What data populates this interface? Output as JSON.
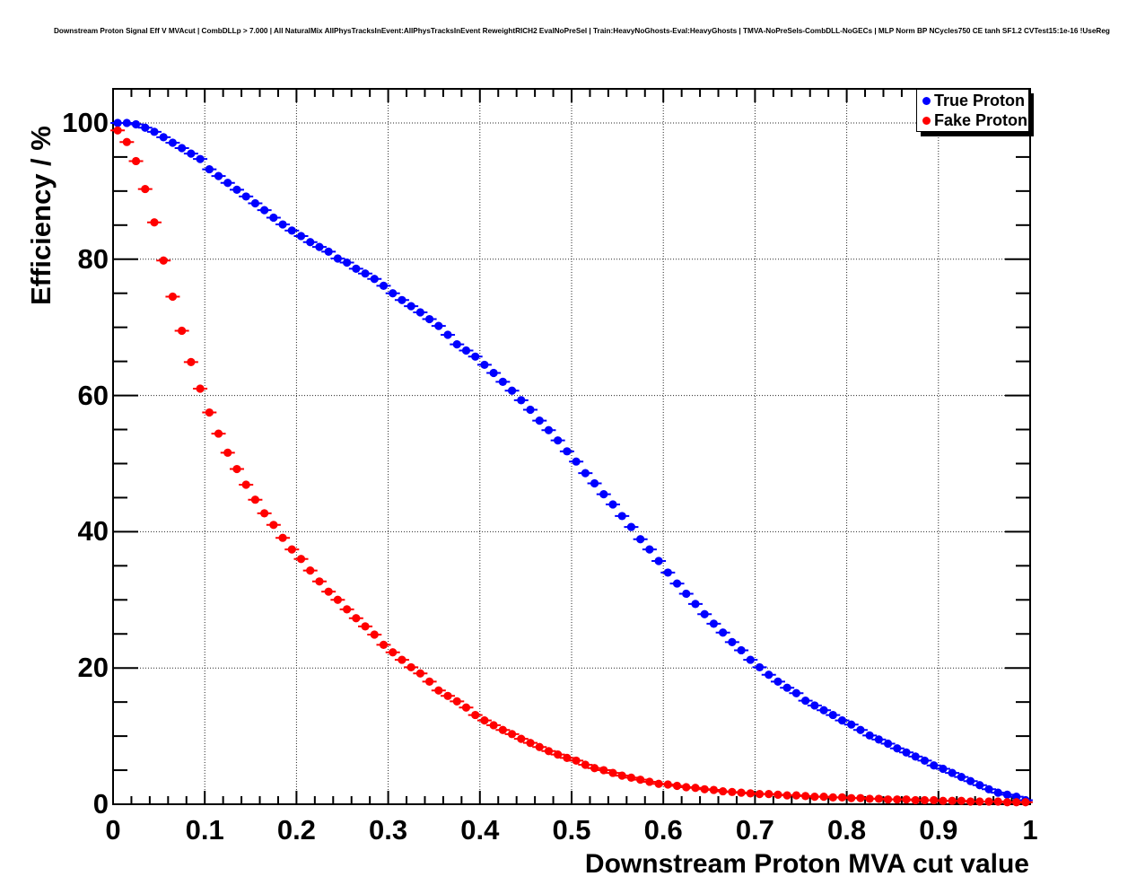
{
  "header": {
    "title": "Downstream Proton Signal Eff V MVAcut | CombDLLp > 7.000 | All NaturalMix AllPhysTracksInEvent:AllPhysTracksInEvent ReweightRICH2 EvalNoPreSel | Train:HeavyNoGhosts-Eval:HeavyGhosts | TMVA-NoPreSels-CombDLL-NoGECs | MLP Norm BP NCycles750 CE tanh SF1.2 CVTest15:1e-16 !UseReg"
  },
  "chart_data": {
    "type": "scatter",
    "title": "Downstream Proton Signal Eff V MVAcut | CombDLLp > 7.000 | All NaturalMix AllPhysTracksInEvent:AllPhysTracksInEvent ReweightRICH2 EvalNoPreSel | Train:HeavyNoGhosts-Eval:HeavyGhosts | TMVA-NoPreSels-CombDLL-NoGECs | MLP Norm BP NCycles750 CE tanh SF1.2 CVTest15:1e-16 !UseReg",
    "xlabel": "Downstream Proton MVA cut value",
    "ylabel": "Efficiency / %",
    "xlim": [
      0,
      1
    ],
    "ylim": [
      0,
      105
    ],
    "grid": true,
    "grid_style": "dotted",
    "legend_position": "top-right",
    "x_tick_values": [
      0,
      0.1,
      0.2,
      0.3,
      0.4,
      0.5,
      0.6,
      0.7,
      0.8,
      0.9,
      1
    ],
    "x_tick_labels": [
      "0",
      "0.1",
      "0.2",
      "0.3",
      "0.4",
      "0.5",
      "0.6",
      "0.7",
      "0.8",
      "0.9",
      "1"
    ],
    "y_tick_values": [
      0,
      20,
      40,
      60,
      80,
      100
    ],
    "y_tick_labels": [
      "0",
      "20",
      "40",
      "60",
      "80",
      "100"
    ],
    "x": [
      0.005,
      0.015,
      0.025,
      0.035,
      0.045,
      0.055,
      0.065,
      0.075,
      0.085,
      0.095,
      0.105,
      0.115,
      0.125,
      0.135,
      0.145,
      0.155,
      0.165,
      0.175,
      0.185,
      0.195,
      0.205,
      0.215,
      0.225,
      0.235,
      0.245,
      0.255,
      0.265,
      0.275,
      0.285,
      0.295,
      0.305,
      0.315,
      0.325,
      0.335,
      0.345,
      0.355,
      0.365,
      0.375,
      0.385,
      0.395,
      0.405,
      0.415,
      0.425,
      0.435,
      0.445,
      0.455,
      0.465,
      0.475,
      0.485,
      0.495,
      0.505,
      0.515,
      0.525,
      0.535,
      0.545,
      0.555,
      0.565,
      0.575,
      0.585,
      0.595,
      0.605,
      0.615,
      0.625,
      0.635,
      0.645,
      0.655,
      0.665,
      0.675,
      0.685,
      0.695,
      0.705,
      0.715,
      0.725,
      0.735,
      0.745,
      0.755,
      0.765,
      0.775,
      0.785,
      0.795,
      0.805,
      0.815,
      0.825,
      0.835,
      0.845,
      0.855,
      0.865,
      0.875,
      0.885,
      0.895,
      0.905,
      0.915,
      0.925,
      0.935,
      0.945,
      0.955,
      0.965,
      0.975,
      0.985,
      0.995
    ],
    "series": [
      {
        "name": "True Proton",
        "color": "#0000ff",
        "marker": "circle",
        "values": [
          100,
          100,
          99.8,
          99.3,
          98.7,
          97.9,
          97.1,
          96.3,
          95.5,
          94.7,
          93.2,
          92.2,
          91.2,
          90.2,
          89.2,
          88.2,
          87.2,
          86.1,
          85.1,
          84.2,
          83.4,
          82.5,
          81.8,
          81.1,
          80.1,
          79.5,
          78.6,
          77.9,
          77.1,
          76.1,
          75.0,
          74.0,
          73.1,
          72.2,
          71.2,
          70.2,
          68.9,
          67.5,
          66.6,
          65.7,
          64.5,
          63.3,
          62.0,
          60.7,
          59.3,
          57.9,
          56.3,
          54.9,
          53.4,
          51.8,
          50.3,
          48.6,
          47.1,
          45.5,
          44.0,
          42.3,
          40.7,
          38.9,
          37.4,
          35.7,
          34.0,
          32.4,
          30.9,
          29.4,
          27.9,
          26.5,
          25.2,
          23.8,
          22.6,
          21.2,
          20.1,
          19.0,
          18.0,
          17.1,
          16.3,
          15.2,
          14.5,
          13.8,
          13.1,
          12.3,
          11.7,
          10.9,
          10.1,
          9.5,
          8.9,
          8.2,
          7.6,
          7.0,
          6.4,
          5.7,
          5.2,
          4.6,
          4.0,
          3.4,
          2.8,
          2.2,
          1.7,
          1.4,
          1.1,
          0.6
        ]
      },
      {
        "name": "Fake Proton",
        "color": "#ff0000",
        "marker": "circle",
        "values": [
          98.9,
          97.2,
          94.4,
          90.3,
          85.4,
          79.8,
          74.5,
          69.5,
          64.9,
          61.0,
          57.5,
          54.4,
          51.6,
          49.2,
          46.9,
          44.7,
          42.7,
          41.0,
          39.1,
          37.4,
          36.0,
          34.3,
          32.7,
          31.2,
          30.0,
          28.6,
          27.3,
          26.1,
          24.9,
          23.4,
          22.3,
          21.2,
          20.1,
          19.2,
          18.0,
          16.7,
          15.9,
          15.1,
          14.2,
          13.1,
          12.3,
          11.6,
          10.9,
          10.3,
          9.6,
          9.0,
          8.4,
          7.8,
          7.3,
          6.8,
          6.4,
          5.8,
          5.3,
          5.0,
          4.6,
          4.2,
          3.9,
          3.6,
          3.3,
          3.0,
          2.9,
          2.7,
          2.5,
          2.4,
          2.2,
          2.1,
          1.9,
          1.8,
          1.7,
          1.6,
          1.5,
          1.5,
          1.4,
          1.3,
          1.3,
          1.2,
          1.1,
          1.1,
          1.0,
          1.0,
          0.9,
          0.9,
          0.8,
          0.8,
          0.7,
          0.7,
          0.7,
          0.6,
          0.6,
          0.6,
          0.5,
          0.5,
          0.5,
          0.4,
          0.4,
          0.4,
          0.4,
          0.3,
          0.3,
          0.3
        ]
      }
    ]
  },
  "legend": {
    "entries": [
      {
        "label": "True Proton",
        "color": "#0000ff"
      },
      {
        "label": "Fake Proton",
        "color": "#ff0000"
      }
    ]
  }
}
